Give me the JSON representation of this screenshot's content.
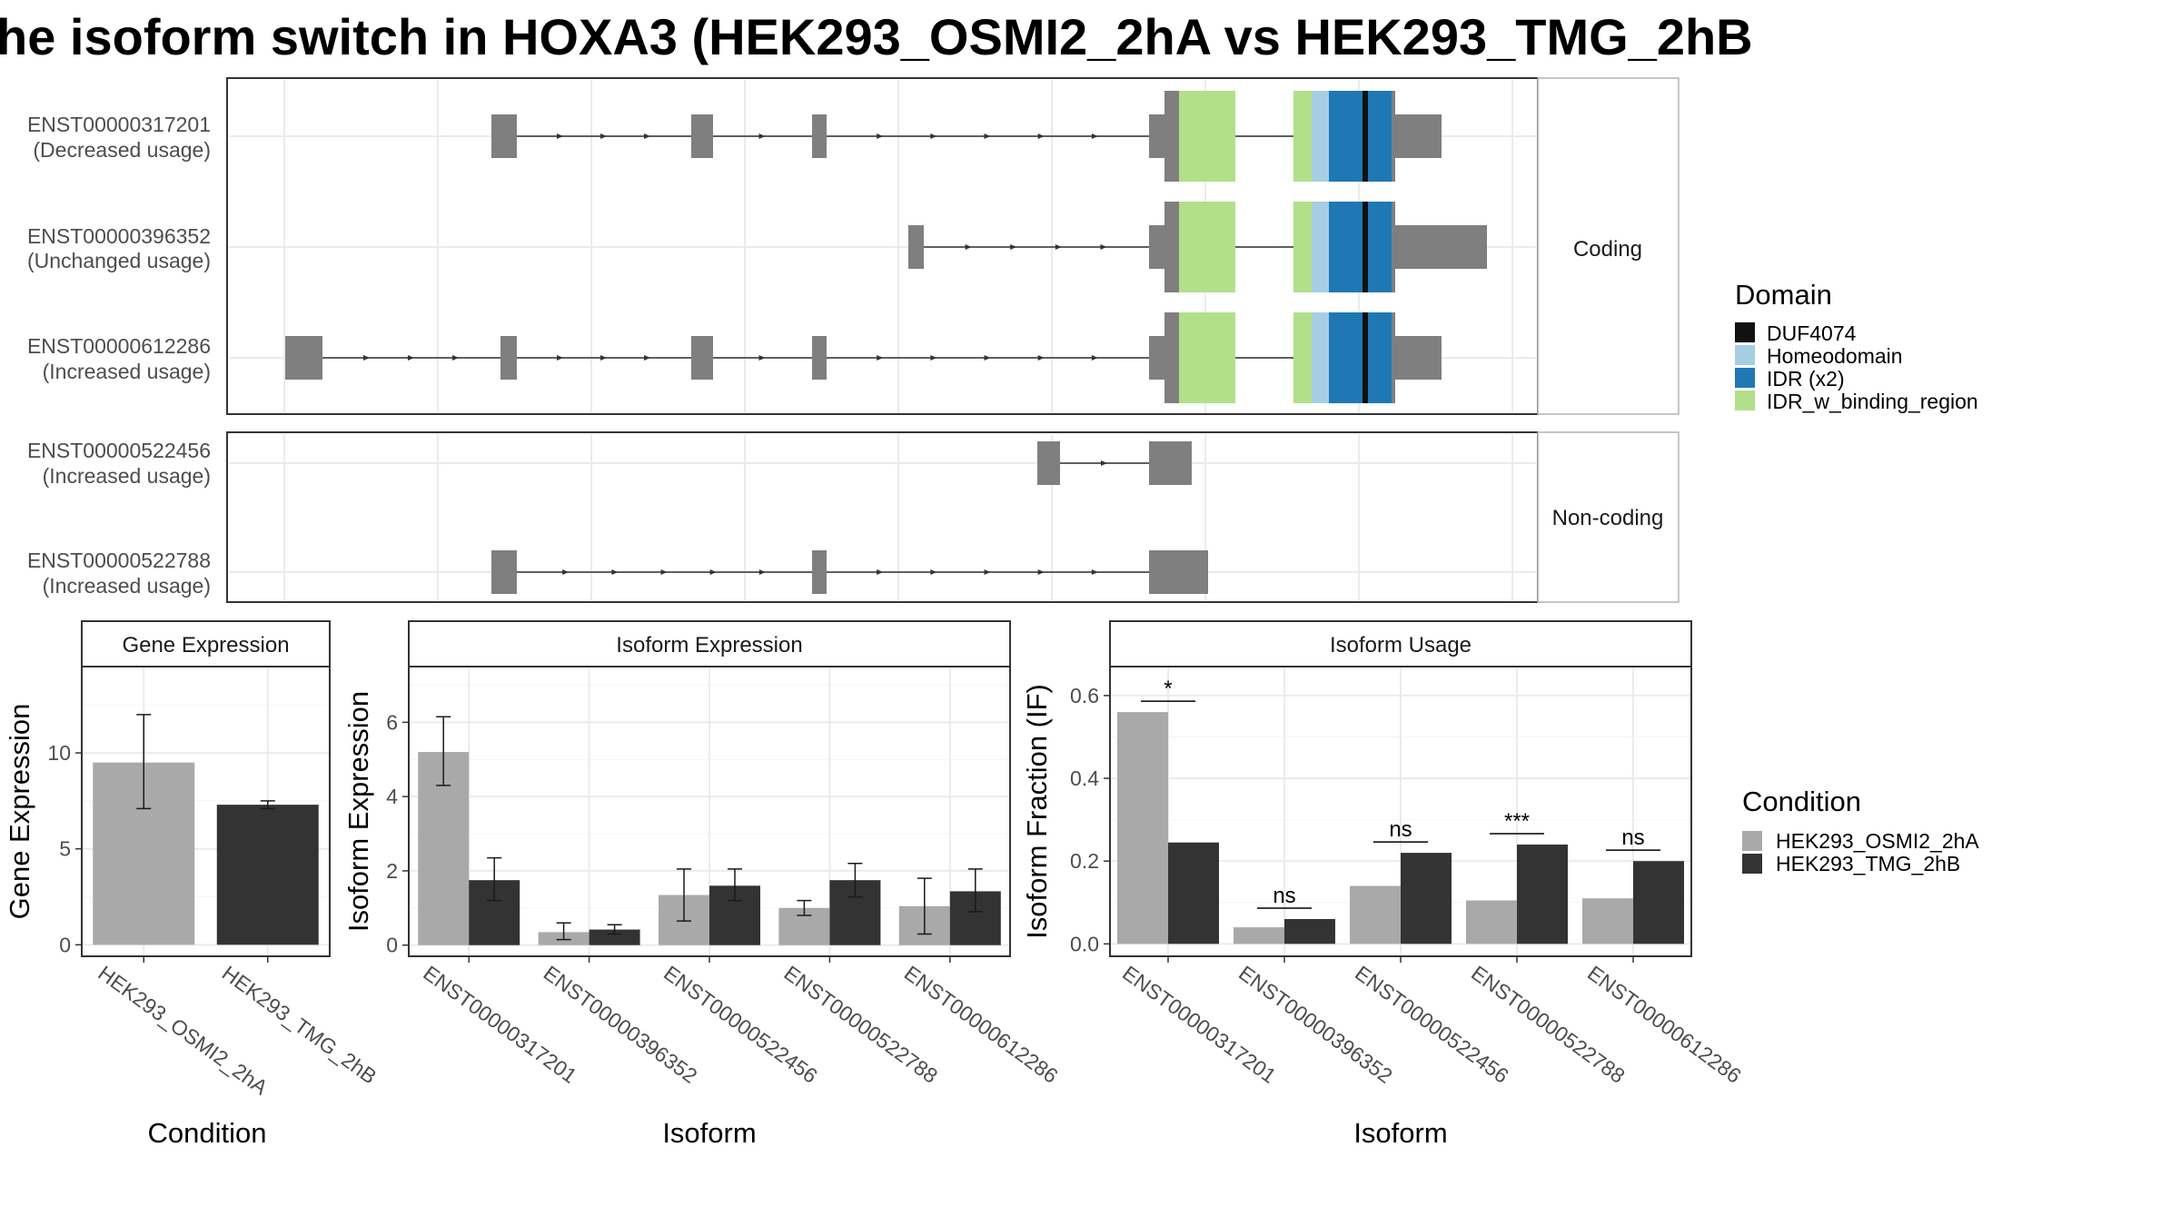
{
  "title": "he isoform switch in HOXA3 (HEK293_OSMI2_2hA vs HEK293_TMG_2hB",
  "colors": {
    "DUF4074": "#111111",
    "Homeodomain": "#a6cee3",
    "IDR (x2)": "#1f78b4",
    "IDR_w_binding_region": "#b2df8a",
    "exon": "#7f7f7f",
    "cond1": "#a9a9a9",
    "cond2": "#333333"
  },
  "structure_panel": {
    "groups": [
      {
        "label": "Coding",
        "isoforms": [
          {
            "id": "ENST00000317201",
            "usage": "(Decreased usage)"
          },
          {
            "id": "ENST00000396352",
            "usage": "(Unchanged usage)"
          },
          {
            "id": "ENST00000612286",
            "usage": "(Increased usage)"
          }
        ]
      },
      {
        "label": "Non-coding",
        "isoforms": [
          {
            "id": "ENST00000522456",
            "usage": "(Increased usage)"
          },
          {
            "id": "ENST00000522788",
            "usage": "(Increased usage)"
          }
        ]
      }
    ],
    "legend": {
      "title": "Domain",
      "items": [
        "DUF4074",
        "Homeodomain",
        "IDR (x2)",
        "IDR_w_binding_region"
      ]
    }
  },
  "chart_data": [
    {
      "type": "bar",
      "title": "Gene Expression",
      "xlabel": "Condition",
      "ylabel": "Gene Expression",
      "categories": [
        "HEK293_OSMI2_2hA",
        "HEK293_TMG_2hB"
      ],
      "values": [
        9.5,
        7.3
      ],
      "error_low": [
        7.1,
        7.1
      ],
      "error_high": [
        12.0,
        7.5
      ],
      "ylim": [
        -0.6,
        14.5
      ],
      "yticks": [
        0,
        5,
        10
      ],
      "grid": true
    },
    {
      "type": "bar",
      "title": "Isoform Expression",
      "xlabel": "Isoform",
      "ylabel": "Isoform Expression",
      "categories": [
        "ENST00000317201",
        "ENST00000396352",
        "ENST00000522456",
        "ENST00000522788",
        "ENST00000612286"
      ],
      "series": [
        {
          "name": "HEK293_OSMI2_2hA",
          "values": [
            5.2,
            0.35,
            1.35,
            1.0,
            1.05
          ],
          "error_low": [
            4.3,
            0.15,
            0.65,
            0.8,
            0.3
          ],
          "error_high": [
            6.15,
            0.6,
            2.05,
            1.2,
            1.8
          ]
        },
        {
          "name": "HEK293_TMG_2hB",
          "values": [
            1.75,
            0.42,
            1.6,
            1.75,
            1.45
          ],
          "error_low": [
            1.2,
            0.3,
            1.2,
            1.3,
            0.9
          ],
          "error_high": [
            2.35,
            0.55,
            2.05,
            2.2,
            2.05
          ]
        }
      ],
      "ylim": [
        -0.3,
        7.5
      ],
      "yticks": [
        0,
        2,
        4,
        6
      ],
      "grid": true
    },
    {
      "type": "bar",
      "title": "Isoform Usage",
      "xlabel": "Isoform",
      "ylabel": "Isoform Fraction (IF)",
      "categories": [
        "ENST00000317201",
        "ENST00000396352",
        "ENST00000522456",
        "ENST00000522788",
        "ENST00000612286"
      ],
      "series": [
        {
          "name": "HEK293_OSMI2_2hA",
          "values": [
            0.56,
            0.04,
            0.14,
            0.105,
            0.11
          ]
        },
        {
          "name": "HEK293_TMG_2hB",
          "values": [
            0.245,
            0.06,
            0.22,
            0.24,
            0.2
          ]
        }
      ],
      "significance": [
        "*",
        "ns",
        "ns",
        "***",
        "ns"
      ],
      "ylim": [
        -0.03,
        0.67
      ],
      "yticks": [
        "0.0",
        "0.2",
        "0.4",
        "0.6"
      ],
      "grid": true
    }
  ],
  "condition_legend": {
    "title": "Condition",
    "items": [
      "HEK293_OSMI2_2hA",
      "HEK293_TMG_2hB"
    ]
  }
}
